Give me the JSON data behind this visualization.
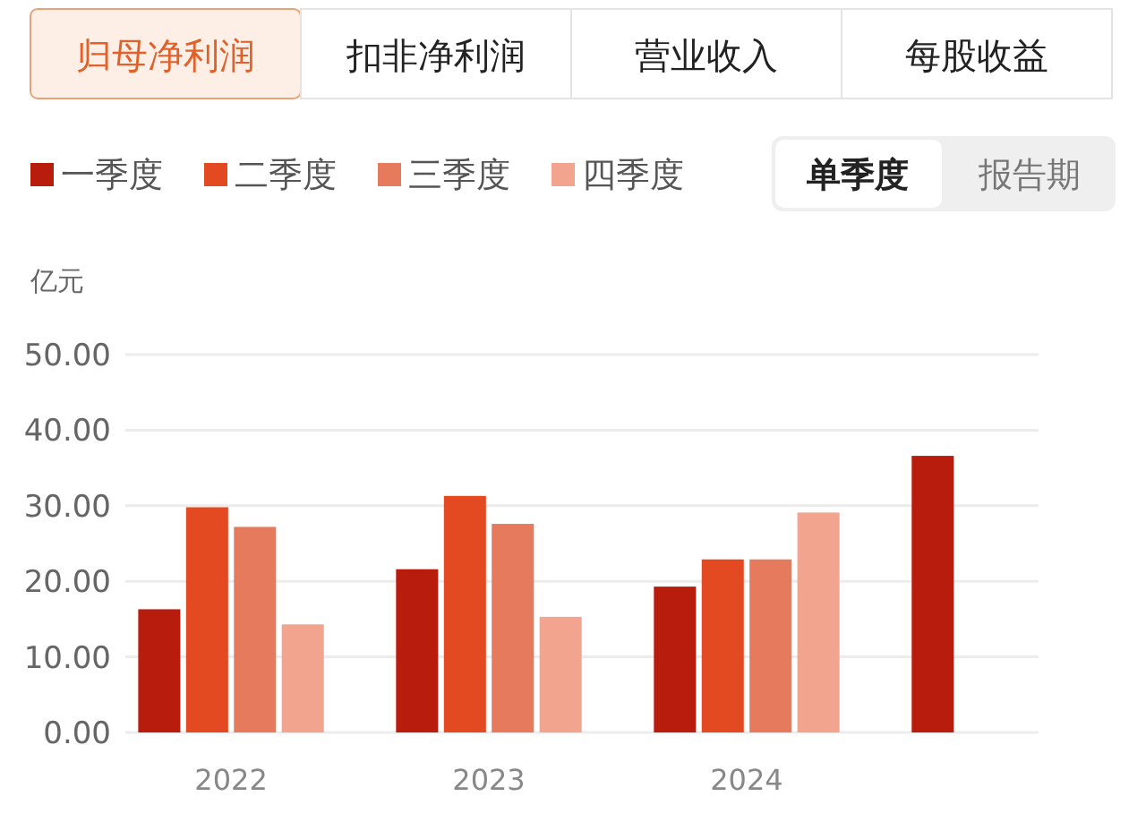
{
  "chart_data": {
    "type": "bar",
    "ylabel": "亿元",
    "categories": [
      "2022",
      "2023",
      "2024",
      null
    ],
    "series": [
      {
        "name": "一季度",
        "color": "#b81c0c",
        "values": [
          16.3,
          21.6,
          19.3,
          36.6
        ]
      },
      {
        "name": "二季度",
        "color": "#e34a22",
        "values": [
          29.8,
          31.3,
          22.9,
          null
        ]
      },
      {
        "name": "三季度",
        "color": "#e57a5c",
        "values": [
          27.2,
          27.6,
          22.9,
          null
        ]
      },
      {
        "name": "四季度",
        "color": "#f2a48e",
        "values": [
          14.3,
          15.3,
          29.1,
          null
        ]
      }
    ],
    "ylim": [
      0,
      50
    ],
    "yticks": [
      {
        "value": 0,
        "label": "0.00"
      },
      {
        "value": 10,
        "label": "10.00"
      },
      {
        "value": 20,
        "label": "20.00"
      },
      {
        "value": 30,
        "label": "30.00"
      },
      {
        "value": 40,
        "label": "40.00"
      },
      {
        "value": 50,
        "label": "50.00"
      }
    ],
    "grid": "y",
    "legend": "top left",
    "annotations": [
      "归母净利润",
      "扣非净利润",
      "营业收入",
      "每股收益",
      "单季度",
      "报告期"
    ]
  }
}
